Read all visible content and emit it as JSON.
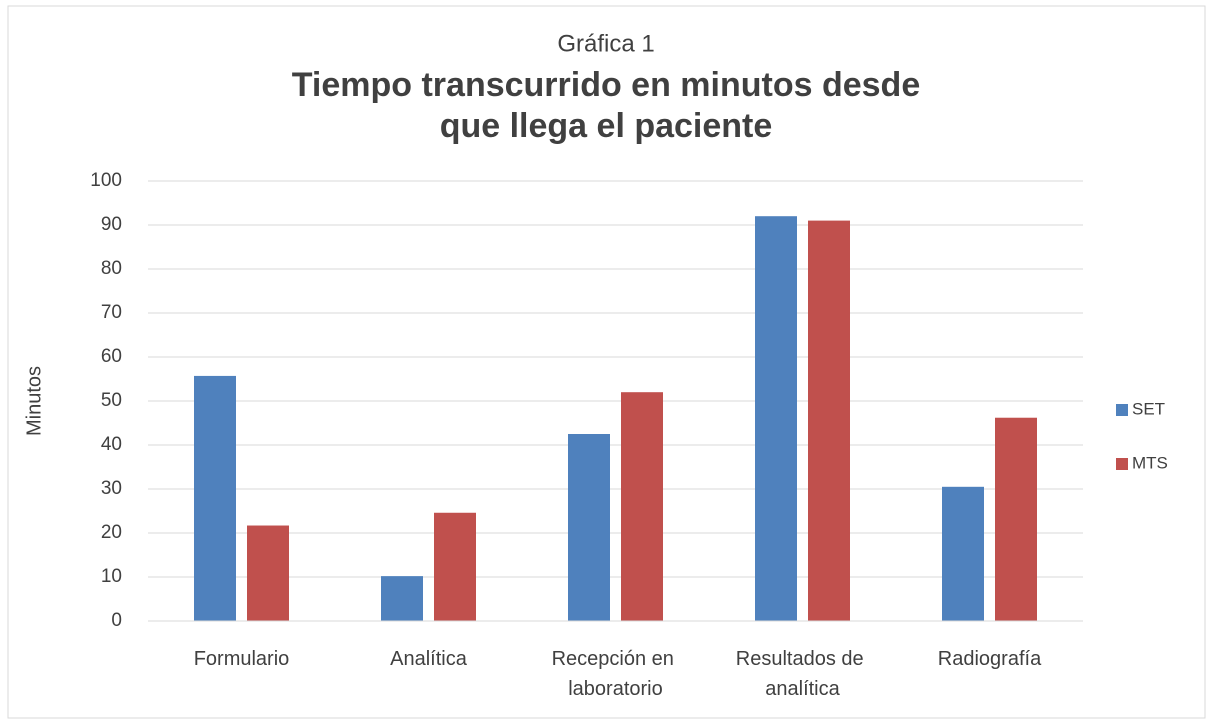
{
  "chart_data": {
    "type": "bar",
    "subtitle": "Gráfica 1",
    "title": [
      "Tiempo transcurrido en minutos desde",
      "que llega el paciente"
    ],
    "ylabel": "Minutos",
    "categories": [
      "Formulario",
      "Analítica",
      "Recepción en laboratorio",
      "Resultados de analítica",
      "Radiografía"
    ],
    "series": [
      {
        "name": "SET",
        "color": "#4f81bd",
        "values": [
          55.7,
          10.2,
          42.5,
          92,
          30.5
        ]
      },
      {
        "name": "MTS",
        "color": "#c0504d",
        "values": [
          21.7,
          24.6,
          52,
          91,
          46.2
        ]
      }
    ],
    "ylim": [
      0,
      100
    ],
    "yticks": [
      0,
      10,
      20,
      30,
      40,
      50,
      60,
      70,
      80,
      90,
      100
    ],
    "grid": true,
    "legend": "right"
  }
}
